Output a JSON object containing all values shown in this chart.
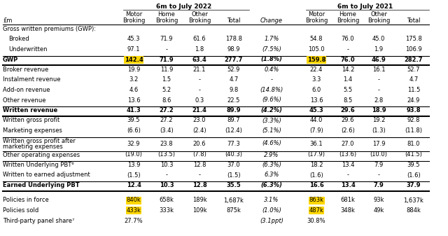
{
  "title_2022": "6m to July 2022",
  "title_2021": "6m to July 2021",
  "col_header1": [
    "Motor",
    "Home",
    "Other",
    "",
    "",
    "Motor",
    "Home",
    "Other",
    ""
  ],
  "col_header2": [
    "Broking",
    "Broking",
    "Broking",
    "Total",
    "Change",
    "Broking",
    "Broking",
    "Broking",
    "Total"
  ],
  "row_label_col": "£m",
  "rows": [
    {
      "label": "Gross written premiums (GWP):",
      "vals": [
        "",
        "",
        "",
        "",
        "",
        "",
        "",
        "",
        ""
      ],
      "bold": false,
      "section_header": true,
      "top_border": false,
      "bot_border": false
    },
    {
      "label": "Broked",
      "vals": [
        "45.3",
        "71.9",
        "61.6",
        "178.8",
        "1.7%",
        "54.8",
        "76.0",
        "45.0",
        "175.8"
      ],
      "bold": false,
      "indent": true,
      "top_border": false,
      "bot_border": false
    },
    {
      "label": "Underwritten",
      "vals": [
        "97.1",
        "-",
        "1.8",
        "98.9",
        "(7.5%)",
        "105.0",
        "-",
        "1.9",
        "106.9"
      ],
      "bold": false,
      "indent": true,
      "top_border": false,
      "bot_border": false
    },
    {
      "label": "GWP",
      "vals": [
        "142.4",
        "71.9",
        "63.4",
        "277.7",
        "(1.8%)",
        "159.8",
        "76.0",
        "46.9",
        "282.7"
      ],
      "bold": true,
      "indent": false,
      "top_border": true,
      "bot_border": true,
      "highlight": [
        0,
        5
      ]
    },
    {
      "label": "Broker revenue",
      "vals": [
        "19.9",
        "11.9",
        "21.1",
        "52.9",
        "0.4%",
        "22.4",
        "14.2",
        "16.1",
        "52.7"
      ],
      "bold": false,
      "indent": false,
      "top_border": false,
      "bot_border": false
    },
    {
      "label": "Instalment revenue",
      "vals": [
        "3.2",
        "1.5",
        "-",
        "4.7",
        "-",
        "3.3",
        "1.4",
        "-",
        "4.7"
      ],
      "bold": false,
      "indent": false,
      "top_border": false,
      "bot_border": false
    },
    {
      "label": "Add-on revenue",
      "vals": [
        "4.6",
        "5.2",
        "-",
        "9.8",
        "(14.8%)",
        "6.0",
        "5.5",
        "-",
        "11.5"
      ],
      "bold": false,
      "indent": false,
      "top_border": false,
      "bot_border": false
    },
    {
      "label": "Other revenue",
      "vals": [
        "13.6",
        "8.6",
        "0.3",
        "22.5",
        "(9.6%)",
        "13.6",
        "8.5",
        "2.8",
        "24.9"
      ],
      "bold": false,
      "indent": false,
      "top_border": false,
      "bot_border": false
    },
    {
      "label": "Written revenue",
      "vals": [
        "41.3",
        "27.2",
        "21.4",
        "89.9",
        "(4.2%)",
        "45.3",
        "29.6",
        "18.9",
        "93.8"
      ],
      "bold": true,
      "indent": false,
      "top_border": true,
      "bot_border": true
    },
    {
      "label": "Written gross profit",
      "vals": [
        "39.5",
        "27.2",
        "23.0",
        "89.7",
        "(3.3%)",
        "44.0",
        "29.6",
        "19.2",
        "92.8"
      ],
      "bold": false,
      "indent": false,
      "top_border": false,
      "bot_border": false
    },
    {
      "label": "Marketing expenses",
      "vals": [
        "(6.6)",
        "(3.4)",
        "(2.4)",
        "(12.4)",
        "(5.1%)",
        "(7.9)",
        "(2.6)",
        "(1.3)",
        "(11.8)"
      ],
      "bold": false,
      "indent": false,
      "top_border": false,
      "bot_border": false
    },
    {
      "label": "Written gross profit after\nmarketing expenses",
      "vals": [
        "32.9",
        "23.8",
        "20.6",
        "77.3",
        "(4.6%)",
        "36.1",
        "27.0",
        "17.9",
        "81.0"
      ],
      "bold": false,
      "indent": false,
      "top_border": true,
      "bot_border": false,
      "multiline": true
    },
    {
      "label": "Other operating expenses",
      "vals": [
        "(19.0)",
        "(13.5)",
        "(7.8)",
        "(40.3)",
        "2.9%",
        "(17.9)",
        "(13.6)",
        "(10.0)",
        "(41.5)"
      ],
      "bold": false,
      "indent": false,
      "top_border": true,
      "bot_border": false
    },
    {
      "label": "Written Underlying PBT⁶",
      "vals": [
        "13.9",
        "10.3",
        "12.8",
        "37.0",
        "(6.3%)",
        "18.2",
        "13.4",
        "7.9",
        "39.5"
      ],
      "bold": false,
      "indent": false,
      "top_border": true,
      "bot_border": false
    },
    {
      "label": "Written to earned adjustment",
      "vals": [
        "(1.5)",
        "-",
        "-",
        "(1.5)",
        "6.3%",
        "(1.6)",
        "-",
        "-",
        "(1.6)"
      ],
      "bold": false,
      "indent": false,
      "top_border": false,
      "bot_border": false
    },
    {
      "label": "Earned Underlying PBT",
      "vals": [
        "12.4",
        "10.3",
        "12.8",
        "35.5",
        "(6.3%)",
        "16.6",
        "13.4",
        "7.9",
        "37.9"
      ],
      "bold": true,
      "indent": false,
      "top_border": true,
      "bot_border": true
    },
    {
      "label": "",
      "vals": [
        "",
        "",
        "",
        "",
        "",
        "",
        "",
        "",
        ""
      ],
      "bold": false,
      "indent": false,
      "top_border": false,
      "bot_border": false,
      "spacer": true
    },
    {
      "label": "Policies in force",
      "vals": [
        "840k",
        "658k",
        "189k",
        "1,687k",
        "3.1%",
        "863k",
        "681k",
        "93k",
        "1,637k"
      ],
      "bold": false,
      "indent": false,
      "top_border": false,
      "bot_border": false,
      "highlight": [
        0,
        5
      ]
    },
    {
      "label": "Policies sold",
      "vals": [
        "433k",
        "333k",
        "109k",
        "875k",
        "(1.0%)",
        "487k",
        "348k",
        "49k",
        "884k"
      ],
      "bold": false,
      "indent": false,
      "top_border": false,
      "bot_border": false,
      "highlight": [
        0,
        5
      ]
    },
    {
      "label": "Third-party panel share⁷",
      "vals": [
        "27.7%",
        "",
        "",
        "",
        "(3.1ppt)",
        "30.8%",
        "",
        "",
        ""
      ],
      "bold": false,
      "indent": false,
      "top_border": false,
      "bot_border": false
    }
  ],
  "highlight_color": "#FFD700",
  "bg_color": "#FFFFFF",
  "text_color": "#000000"
}
